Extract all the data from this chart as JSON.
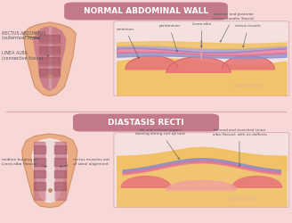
{
  "bg_color": "#f8d7d7",
  "title1": "NORMAL ABDOMINAL WALL",
  "title2": "DIASTASIS RECTI",
  "title_box_color": "#c27a8a",
  "title_text_color": "#ffffff",
  "skin_color": "#e8a87c",
  "muscle_color": "#c8778a",
  "muscle_dark": "#a05060",
  "linea_color": "#d4a0b0",
  "white_color": "#f5e8e8",
  "fat_color": "#f0c060",
  "fat_dark": "#d4a040",
  "peritoneum_color": "#9090c8",
  "pink_layer": "#e87090",
  "blue_layer": "#8888cc",
  "organ_color": "#e87878",
  "organ_dark": "#c05050",
  "section_divider": "#e0b0b0",
  "annotation_color": "#555555",
  "label1_top": "RECTUS ABDOMINIS\n(outermost layer)",
  "label2_top": "LINEA ALBA\n(connective tissue)",
  "label_right_top": "anterior and posterior\nrectus sheaths (fascia)",
  "label_omentum": "omentum",
  "label_peritoneum": "peritoneum",
  "label_linea_alba": "Linea alba",
  "label_rectus_muscle": "rectus muscle",
  "label_midline": "midline bulging of\nLinea alba (fascia)",
  "label_rectus_out": "rectus muscles out\nof ideal alignment",
  "label_fat": "fat and internal organs\ndoming during curl-up task",
  "label_thinned": "thinned and stretched Linea\nalba (fascia), with no deffects",
  "watermark": "karamela"
}
